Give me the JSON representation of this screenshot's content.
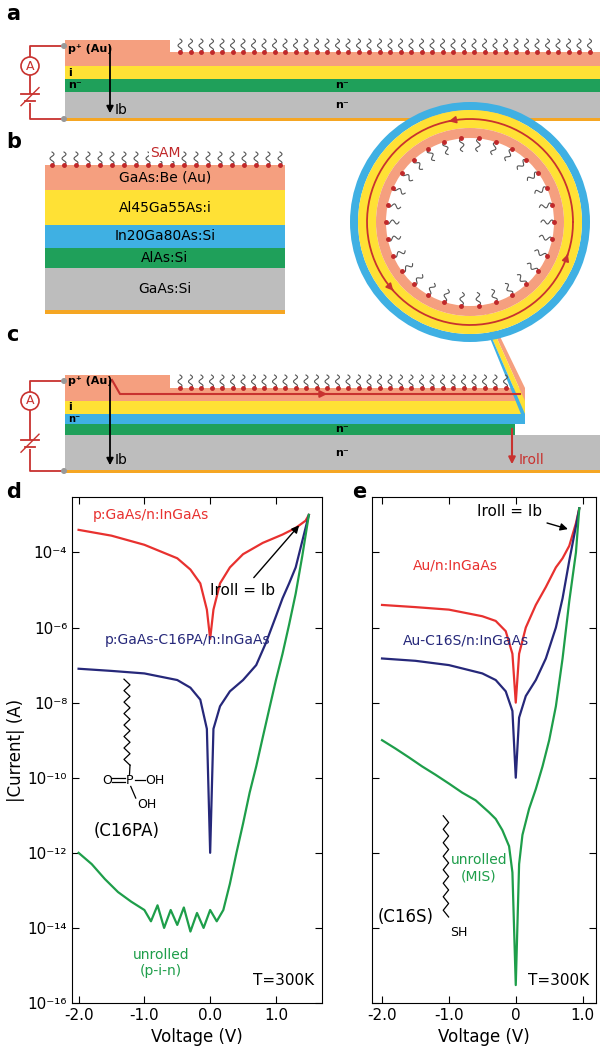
{
  "panel_labels": [
    "a",
    "b",
    "c",
    "d",
    "e"
  ],
  "diagrams": {
    "a": {
      "layers": [
        "p⁺ (Au)",
        "i",
        "n⁻"
      ],
      "center_labels": [
        "n⁻",
        "n⁻"
      ],
      "current": "Ib",
      "meter": "A"
    },
    "b": {
      "sam": "SAM",
      "layers": [
        "GaAs:Be (Au)",
        "Al45Ga55As:i",
        "In20Ga80As:Si",
        "AlAs:Si",
        "GaAs:Si"
      ]
    },
    "c": {
      "layers": [
        "p⁺ (Au)",
        "i",
        "n⁻"
      ],
      "center_labels": [
        "n⁻",
        "n⁻"
      ],
      "currents": [
        "Ib",
        "Iroll"
      ],
      "meter": "A"
    }
  },
  "chart_data": [
    {
      "type": "line",
      "log": "y",
      "x_label": "Voltage (V)",
      "y_label": "|Current| (A)",
      "xlim": [
        -2.1,
        1.7
      ],
      "ylim": [
        1e-16,
        0.003
      ],
      "xticks": [
        {
          "value": -2,
          "label": "-2.0"
        },
        {
          "value": -1,
          "label": "-1.0"
        },
        {
          "value": 0,
          "label": "0.0"
        },
        {
          "value": 1,
          "label": "1.0"
        }
      ],
      "yticks": [
        {
          "value": 1e-16,
          "label": "10⁻¹⁶"
        },
        {
          "value": 1e-14,
          "label": "10⁻¹⁴"
        },
        {
          "value": 1e-12,
          "label": "10⁻¹²"
        },
        {
          "value": 1e-10,
          "label": "10⁻¹⁰"
        },
        {
          "value": 1e-08,
          "label": "10⁻⁸"
        },
        {
          "value": 1e-06,
          "label": "10⁻⁶"
        },
        {
          "value": 0.0001,
          "label": "10⁻⁴"
        }
      ],
      "annotations": [
        "Iroll = Ib",
        "T=300K"
      ],
      "molecule": {
        "name": "(C16PA)",
        "atoms": [
          "O",
          "P",
          "OH",
          "OH"
        ]
      },
      "series": [
        {
          "name": "p:GaAs/n:InGaAs",
          "color": "#e8312f",
          "x": [
            -2.0,
            -1.5,
            -1.0,
            -0.5,
            -0.3,
            -0.15,
            -0.05,
            0.0,
            0.05,
            0.15,
            0.3,
            0.5,
            0.8,
            1.1,
            1.3,
            1.45,
            1.5
          ],
          "values": [
            0.0004,
            0.00028,
            0.00016,
            7e-05,
            3.5e-05,
            1.5e-05,
            3e-06,
            5e-07,
            3e-06,
            1.5e-05,
            4e-05,
            9e-05,
            0.00018,
            0.0003,
            0.00045,
            0.0007,
            0.001
          ]
        },
        {
          "name": "p:GaAs-C16PA/n:InGaAs",
          "color": "#26287a",
          "x": [
            -2.0,
            -1.5,
            -1.0,
            -0.5,
            -0.3,
            -0.15,
            -0.05,
            0.0,
            0.05,
            0.15,
            0.3,
            0.5,
            0.7,
            0.85,
            1.0,
            1.1,
            1.2,
            1.3,
            1.4,
            1.5
          ],
          "values": [
            8e-08,
            7e-08,
            6e-08,
            4e-08,
            2.5e-08,
            1.2e-08,
            2e-09,
            1e-12,
            2e-09,
            8e-09,
            2e-08,
            4e-08,
            1e-07,
            4e-07,
            2e-06,
            6e-06,
            1.5e-05,
            4e-05,
            0.0002,
            0.001
          ]
        },
        {
          "name": "unrolled\n(p-i-n)",
          "color": "#1e9e4a",
          "x": [
            -2.0,
            -1.8,
            -1.6,
            -1.4,
            -1.2,
            -1.0,
            -0.9,
            -0.8,
            -0.7,
            -0.6,
            -0.5,
            -0.4,
            -0.3,
            -0.2,
            -0.1,
            0.0,
            0.1,
            0.2,
            0.3,
            0.4,
            0.5,
            0.6,
            0.7,
            0.8,
            0.9,
            1.0,
            1.1,
            1.2,
            1.3,
            1.4,
            1.5
          ],
          "values": [
            1e-12,
            5e-13,
            2e-13,
            9e-14,
            5e-14,
            3e-14,
            1.5e-14,
            4e-14,
            1e-14,
            3e-14,
            1.2e-14,
            3.5e-14,
            8e-15,
            2.5e-14,
            1e-14,
            3e-14,
            1.5e-14,
            3e-14,
            1.5e-13,
            1e-12,
            6e-12,
            4e-11,
            2e-10,
            1.2e-09,
            7e-09,
            4e-08,
            2e-07,
            1.2e-06,
            8e-06,
            8e-05,
            0.001
          ]
        }
      ]
    },
    {
      "type": "line",
      "log": "y",
      "x_label": "Voltage (V)",
      "tick_labels": "x",
      "xlim": [
        -2.15,
        1.2
      ],
      "ylim": [
        1e-16,
        0.003
      ],
      "xticks": [
        {
          "value": -2,
          "label": "-2.0"
        },
        {
          "value": -1,
          "label": "-1.0"
        },
        0,
        {
          "value": 1,
          "label": "1.0"
        }
      ],
      "yticks": [
        1e-16,
        1e-14,
        1e-12,
        1e-10,
        1e-08,
        1e-06,
        0.0001
      ],
      "annotations": [
        "Iroll = Ib",
        "T=300K"
      ],
      "molecule": {
        "name": "(C16S)",
        "atoms": [
          "SH"
        ]
      },
      "series": [
        {
          "name": "Au/n:InGaAs",
          "color": "#e8312f",
          "x": [
            -2.0,
            -1.5,
            -1.0,
            -0.5,
            -0.3,
            -0.15,
            -0.05,
            0.0,
            0.05,
            0.15,
            0.3,
            0.45,
            0.6,
            0.7,
            0.8,
            0.9,
            0.95
          ],
          "values": [
            4e-06,
            3.5e-06,
            3e-06,
            2e-06,
            1.5e-06,
            8e-07,
            2e-07,
            1e-08,
            2e-07,
            1e-06,
            4e-06,
            1.2e-05,
            4e-05,
            7e-05,
            0.00015,
            0.0006,
            0.0015
          ]
        },
        {
          "name": "Au-C16S/n:InGaAs",
          "color": "#26287a",
          "x": [
            -2.0,
            -1.5,
            -1.0,
            -0.5,
            -0.3,
            -0.15,
            -0.05,
            0.0,
            0.05,
            0.15,
            0.3,
            0.45,
            0.6,
            0.7,
            0.8,
            0.9,
            0.95
          ],
          "values": [
            1.5e-07,
            1.3e-07,
            1e-07,
            6e-08,
            4e-08,
            2e-08,
            6e-09,
            1e-10,
            4e-09,
            1.5e-08,
            4e-08,
            1.5e-07,
            1e-06,
            6e-06,
            6e-05,
            0.0005,
            0.0015
          ]
        },
        {
          "name": "unrolled\n(MIS)",
          "color": "#1e9e4a",
          "x": [
            -2.0,
            -1.8,
            -1.6,
            -1.4,
            -1.2,
            -1.0,
            -0.8,
            -0.6,
            -0.4,
            -0.3,
            -0.2,
            -0.1,
            -0.05,
            0.0,
            0.05,
            0.1,
            0.2,
            0.3,
            0.4,
            0.5,
            0.6,
            0.7,
            0.8,
            0.9,
            0.95
          ],
          "values": [
            1e-09,
            6e-10,
            3.5e-10,
            2e-10,
            1.2e-10,
            7e-11,
            4e-11,
            2.5e-11,
            1.2e-11,
            8e-12,
            4e-12,
            1.5e-12,
            3e-13,
            3e-16,
            5e-13,
            3e-12,
            1.5e-11,
            5e-11,
            2e-10,
            1e-09,
            8e-09,
            1.5e-07,
            5e-06,
            0.0001,
            0.0015
          ]
        }
      ]
    }
  ]
}
